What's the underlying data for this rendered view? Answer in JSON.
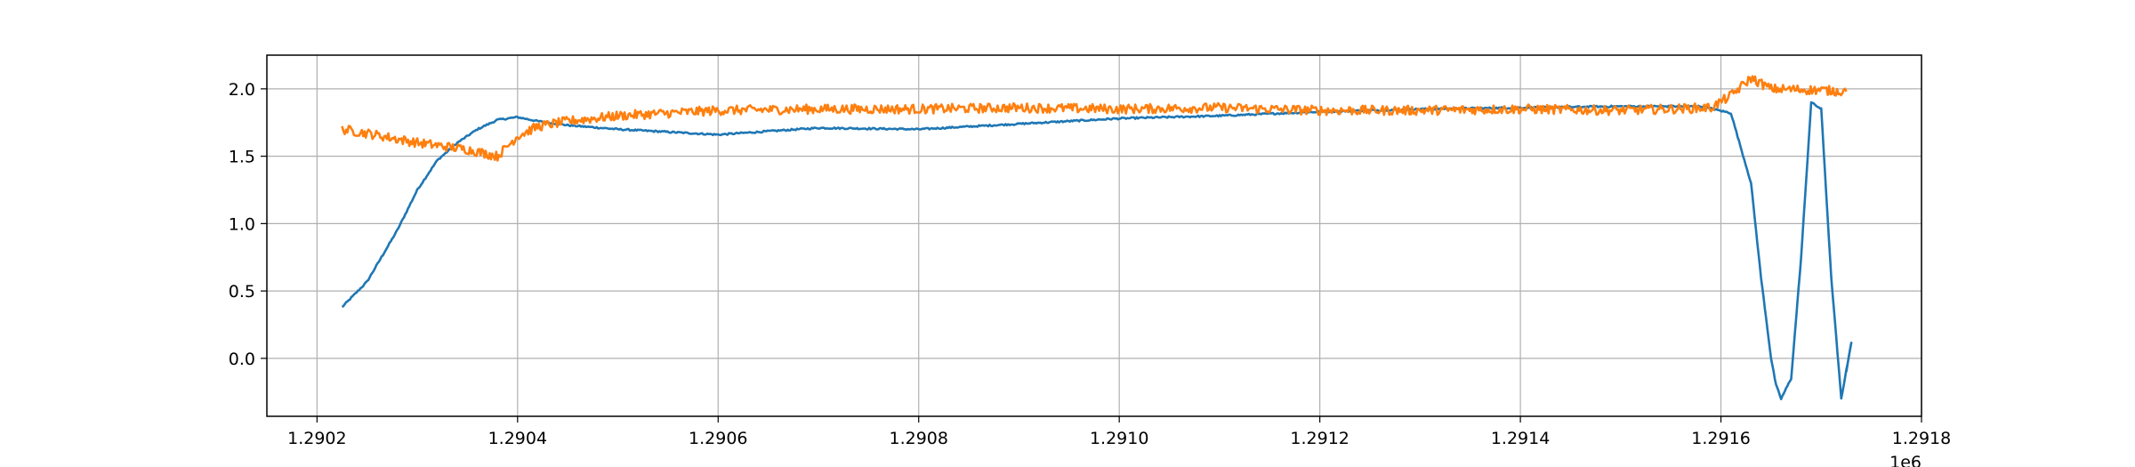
{
  "chart_data": {
    "type": "line",
    "title": "",
    "xlabel": "",
    "ylabel": "",
    "x_offset_label": "1e6",
    "xlim": [
      1.29015,
      1.2918
    ],
    "ylim": [
      -0.43,
      2.25
    ],
    "x_ticks": [
      1.2902,
      1.2904,
      1.2906,
      1.2908,
      1.291,
      1.2912,
      1.2914,
      1.2916,
      1.2918
    ],
    "x_tick_labels": [
      "1.2902",
      "1.2904",
      "1.2906",
      "1.2908",
      "1.2910",
      "1.2912",
      "1.2914",
      "1.2916",
      "1.2918"
    ],
    "y_ticks": [
      0.0,
      0.5,
      1.0,
      1.5,
      2.0
    ],
    "y_tick_labels": [
      "0.0",
      "0.5",
      "1.0",
      "1.5",
      "2.0"
    ],
    "grid": true,
    "series": [
      {
        "color": "#1f77b4",
        "noise": 0.006,
        "x": [
          1.290225,
          1.29025,
          1.29028,
          1.2903,
          1.29032,
          1.29034,
          1.29036,
          1.29038,
          1.2904,
          1.29042,
          1.29045,
          1.2905,
          1.2906,
          1.2907,
          1.2908,
          1.2909,
          1.291,
          1.2911,
          1.2912,
          1.2913,
          1.2914,
          1.2915,
          1.29158,
          1.29161,
          1.29163,
          1.29164,
          1.29165,
          1.291655,
          1.29166,
          1.29167,
          1.29168,
          1.29169,
          1.2917,
          1.29171,
          1.29172,
          1.29173,
          1.291725
        ],
        "y": [
          0.38,
          0.57,
          0.95,
          1.25,
          1.47,
          1.6,
          1.7,
          1.77,
          1.79,
          1.76,
          1.73,
          1.7,
          1.66,
          1.71,
          1.7,
          1.74,
          1.78,
          1.8,
          1.83,
          1.85,
          1.86,
          1.87,
          1.87,
          1.82,
          1.3,
          0.6,
          0.0,
          -0.2,
          -0.3,
          -0.15,
          0.75,
          1.9,
          1.85,
          0.6,
          -0.3,
          0.12,
          -0.1
        ]
      },
      {
        "color": "#ff7f0e",
        "noise": 0.035,
        "x": [
          1.290225,
          1.29025,
          1.2903,
          1.29035,
          1.29038,
          1.2904,
          1.29042,
          1.29045,
          1.2905,
          1.2906,
          1.2907,
          1.2908,
          1.2909,
          1.291,
          1.2911,
          1.2912,
          1.2913,
          1.2914,
          1.2915,
          1.29159,
          1.29161,
          1.29163,
          1.29165,
          1.2917,
          1.291725
        ],
        "y": [
          1.7,
          1.67,
          1.6,
          1.55,
          1.5,
          1.65,
          1.72,
          1.76,
          1.8,
          1.84,
          1.85,
          1.85,
          1.86,
          1.85,
          1.86,
          1.84,
          1.84,
          1.85,
          1.84,
          1.86,
          1.95,
          2.08,
          2.0,
          1.99,
          1.98
        ]
      }
    ]
  }
}
